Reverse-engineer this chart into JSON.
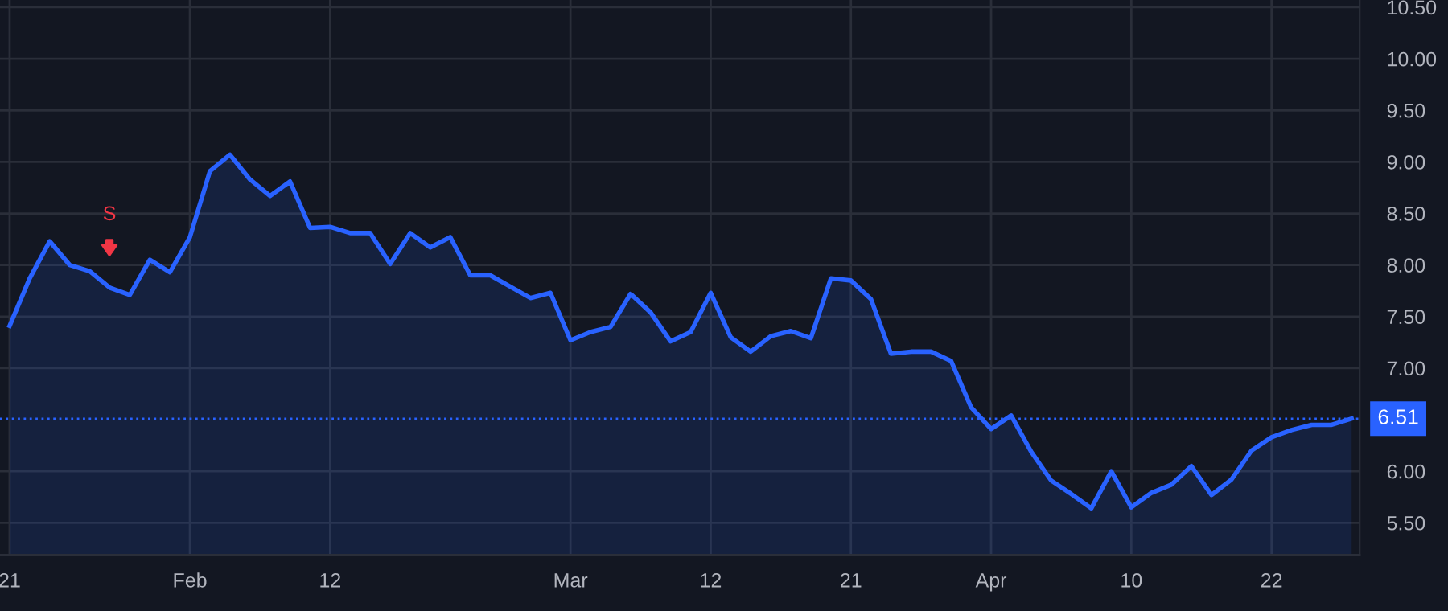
{
  "chart_data": {
    "type": "area",
    "categories": [
      "21",
      null,
      null,
      null,
      null,
      null,
      null,
      null,
      null,
      "Feb",
      null,
      null,
      null,
      null,
      null,
      null,
      "12",
      null,
      null,
      null,
      null,
      null,
      null,
      null,
      null,
      null,
      null,
      null,
      "Mar",
      null,
      null,
      null,
      null,
      null,
      null,
      "12",
      null,
      null,
      null,
      null,
      null,
      null,
      "21",
      null,
      null,
      null,
      null,
      null,
      null,
      "Apr",
      null,
      null,
      null,
      null,
      null,
      null,
      "10",
      null,
      null,
      null,
      null,
      null,
      null,
      "22",
      null,
      null,
      null,
      null
    ],
    "series": [
      {
        "color": "#2962ff",
        "values": [
          7.41,
          7.87,
          8.23,
          8.0,
          7.94,
          7.78,
          7.71,
          8.05,
          7.93,
          8.27,
          8.91,
          9.07,
          8.83,
          8.67,
          8.81,
          8.36,
          8.37,
          8.31,
          8.31,
          8.01,
          8.31,
          8.17,
          8.27,
          7.9,
          7.9,
          7.79,
          7.68,
          7.73,
          7.27,
          7.35,
          7.4,
          7.72,
          7.54,
          7.26,
          7.35,
          7.73,
          7.3,
          7.16,
          7.31,
          7.36,
          7.29,
          7.87,
          7.85,
          7.67,
          7.14,
          7.16,
          7.16,
          7.07,
          6.62,
          6.41,
          6.54,
          6.19,
          5.91,
          5.78,
          5.64,
          6.0,
          5.65,
          5.79,
          5.87,
          6.05,
          5.77,
          5.92,
          6.2,
          6.33,
          6.4,
          6.45,
          6.45,
          6.51
        ]
      }
    ],
    "ylim": [
      5.19,
      10.57
    ],
    "yticks": [
      {
        "value": 5.5,
        "label": "5.50"
      },
      {
        "value": 6.0,
        "label": "6.00"
      },
      {
        "value": 7.0,
        "label": "7.00"
      },
      {
        "value": 7.5,
        "label": "7.50"
      },
      {
        "value": 8.0,
        "label": "8.00"
      },
      {
        "value": 8.5,
        "label": "8.50"
      },
      {
        "value": 9.0,
        "label": "9.00"
      },
      {
        "value": 9.5,
        "label": "9.50"
      },
      {
        "value": 10.0,
        "label": "10.00"
      },
      {
        "value": 10.5,
        "label": "10.50"
      }
    ],
    "ref_lines": [
      {
        "axis": "y",
        "value": 6.51,
        "label": "6.51",
        "color": "#2962ff",
        "line_style": "dotted"
      }
    ],
    "annotations": [
      "S"
    ],
    "grid": true,
    "legend": false
  }
}
